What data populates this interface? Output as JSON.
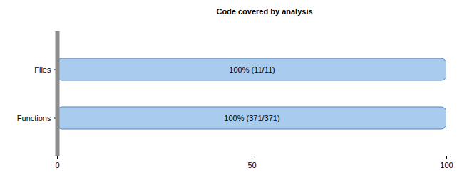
{
  "chart_data": {
    "type": "bar",
    "title": "Code covered by analysis",
    "orientation": "horizontal",
    "categories": [
      "Files",
      "Functions"
    ],
    "values": [
      100,
      100
    ],
    "value_labels": [
      "100% (11/11)",
      "100% (371/371)"
    ],
    "data_labels": true,
    "color": "#a9cbee",
    "xlim": [
      0,
      100
    ],
    "xticks": [
      0,
      50,
      100
    ],
    "grid": false
  }
}
